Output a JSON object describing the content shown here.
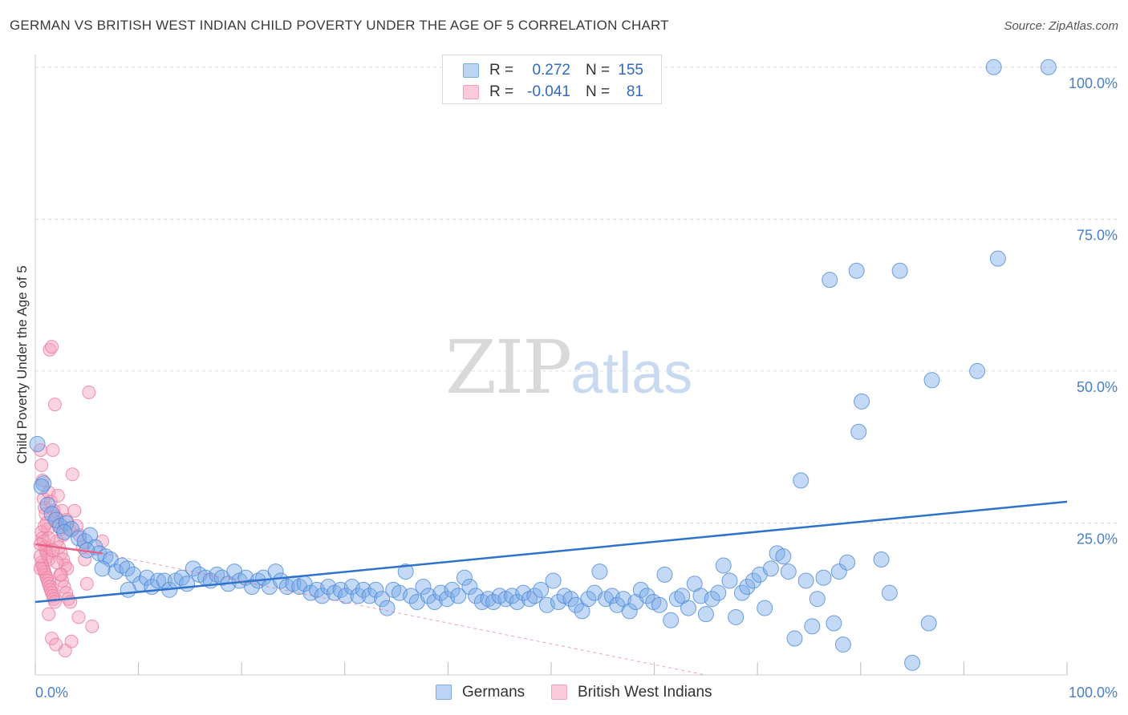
{
  "title": "GERMAN VS BRITISH WEST INDIAN CHILD POVERTY UNDER THE AGE OF 5 CORRELATION CHART",
  "source": "Source: ZipAtlas.com",
  "watermark": {
    "zip": "ZIP",
    "atlas": "atlas"
  },
  "legend": {
    "rows": [
      {
        "r_label": "R =",
        "r_value": "0.272",
        "n_label": "N =",
        "n_value": "155",
        "color": "#7aaae8"
      },
      {
        "r_label": "R =",
        "r_value": "-0.041",
        "n_label": "N =",
        "n_value": "81",
        "color": "#f4a0bb"
      }
    ]
  },
  "bottom_legend": [
    {
      "name": "Germans",
      "color": "#7aaae8"
    },
    {
      "name": "British West Indians",
      "color": "#f4a0bb"
    }
  ],
  "chart_data": {
    "type": "scatter",
    "title": "GERMAN VS BRITISH WEST INDIAN CHILD POVERTY UNDER THE AGE OF 5 CORRELATION CHART",
    "xlabel": "",
    "ylabel": "Child Poverty Under the Age of 5",
    "xlim": [
      0,
      100
    ],
    "ylim": [
      0,
      100
    ],
    "x_ticks": [
      "0.0%",
      "100.0%"
    ],
    "y_ticks": [
      {
        "value": 25,
        "label": "25.0%"
      },
      {
        "value": 50,
        "label": "50.0%"
      },
      {
        "value": 75,
        "label": "75.0%"
      },
      {
        "value": 100,
        "label": "100.0%"
      }
    ],
    "grid": true,
    "series": [
      {
        "name": "Germans",
        "color": "#7aaae8",
        "stroke": "#4d8ad8",
        "trend": {
          "x": [
            0,
            100
          ],
          "y": [
            12.0,
            28.5
          ],
          "color": "#2f72cc",
          "style": "solid"
        },
        "points": [
          [
            0.2,
            38.0
          ],
          [
            0.8,
            31.5
          ],
          [
            1.2,
            28.0
          ],
          [
            1.6,
            26.5
          ],
          [
            2.0,
            25.5
          ],
          [
            2.4,
            24.5
          ],
          [
            3.0,
            25.0
          ],
          [
            3.5,
            24.0
          ],
          [
            4.2,
            22.5
          ],
          [
            4.8,
            22.0
          ],
          [
            5.3,
            23.0
          ],
          [
            5.8,
            21.0
          ],
          [
            6.2,
            20.0
          ],
          [
            6.8,
            19.5
          ],
          [
            7.3,
            19.0
          ],
          [
            7.8,
            17.0
          ],
          [
            8.4,
            18.0
          ],
          [
            8.9,
            17.5
          ],
          [
            9.5,
            16.5
          ],
          [
            10.2,
            15.0
          ],
          [
            10.8,
            16.0
          ],
          [
            11.3,
            14.5
          ],
          [
            11.9,
            15.5
          ],
          [
            12.5,
            15.5
          ],
          [
            13.0,
            14.0
          ],
          [
            13.6,
            15.5
          ],
          [
            14.2,
            16.0
          ],
          [
            14.7,
            15.0
          ],
          [
            15.3,
            17.5
          ],
          [
            15.9,
            16.5
          ],
          [
            16.5,
            16.0
          ],
          [
            17.0,
            15.5
          ],
          [
            17.6,
            16.5
          ],
          [
            18.1,
            16.0
          ],
          [
            18.7,
            15.0
          ],
          [
            19.3,
            17.0
          ],
          [
            19.8,
            15.5
          ],
          [
            20.4,
            16.0
          ],
          [
            21.0,
            14.5
          ],
          [
            21.6,
            15.5
          ],
          [
            22.1,
            16.0
          ],
          [
            22.7,
            14.5
          ],
          [
            23.3,
            17.0
          ],
          [
            23.8,
            15.5
          ],
          [
            24.4,
            14.5
          ],
          [
            25.0,
            15.0
          ],
          [
            25.6,
            14.5
          ],
          [
            26.1,
            15.0
          ],
          [
            26.7,
            13.5
          ],
          [
            27.3,
            14.0
          ],
          [
            27.8,
            13.0
          ],
          [
            28.4,
            14.5
          ],
          [
            29.0,
            13.5
          ],
          [
            29.6,
            14.0
          ],
          [
            30.1,
            13.0
          ],
          [
            30.7,
            14.5
          ],
          [
            31.3,
            13.0
          ],
          [
            31.8,
            14.0
          ],
          [
            32.4,
            13.0
          ],
          [
            33.0,
            14.0
          ],
          [
            33.6,
            12.5
          ],
          [
            34.1,
            11.0
          ],
          [
            34.7,
            14.0
          ],
          [
            35.3,
            13.5
          ],
          [
            35.9,
            17.0
          ],
          [
            36.4,
            13.0
          ],
          [
            37.0,
            12.0
          ],
          [
            37.6,
            14.5
          ],
          [
            38.1,
            13.0
          ],
          [
            38.7,
            12.0
          ],
          [
            39.3,
            13.5
          ],
          [
            39.9,
            12.5
          ],
          [
            40.4,
            14.0
          ],
          [
            41.0,
            13.0
          ],
          [
            41.6,
            16.0
          ],
          [
            42.1,
            14.5
          ],
          [
            42.7,
            13.0
          ],
          [
            43.3,
            12.0
          ],
          [
            43.9,
            12.5
          ],
          [
            44.4,
            12.0
          ],
          [
            45.0,
            13.0
          ],
          [
            45.6,
            12.5
          ],
          [
            46.2,
            13.0
          ],
          [
            46.7,
            12.0
          ],
          [
            47.3,
            13.5
          ],
          [
            47.9,
            12.5
          ],
          [
            48.4,
            13.0
          ],
          [
            49.0,
            14.0
          ],
          [
            49.6,
            11.5
          ],
          [
            50.2,
            15.5
          ],
          [
            50.7,
            12.0
          ],
          [
            51.3,
            13.0
          ],
          [
            51.9,
            12.5
          ],
          [
            52.4,
            11.5
          ],
          [
            53.0,
            10.5
          ],
          [
            53.6,
            12.5
          ],
          [
            54.2,
            13.5
          ],
          [
            54.7,
            17.0
          ],
          [
            55.3,
            12.5
          ],
          [
            55.9,
            13.0
          ],
          [
            56.4,
            11.5
          ],
          [
            57.0,
            12.5
          ],
          [
            57.6,
            10.5
          ],
          [
            58.2,
            12.0
          ],
          [
            58.7,
            14.0
          ],
          [
            59.3,
            13.0
          ],
          [
            59.9,
            12.0
          ],
          [
            60.5,
            11.5
          ],
          [
            61.0,
            16.5
          ],
          [
            61.6,
            9.0
          ],
          [
            62.2,
            12.5
          ],
          [
            62.7,
            13.0
          ],
          [
            63.3,
            11.0
          ],
          [
            63.9,
            15.0
          ],
          [
            64.5,
            13.0
          ],
          [
            65.0,
            10.0
          ],
          [
            65.6,
            12.5
          ],
          [
            66.2,
            13.5
          ],
          [
            66.7,
            18.0
          ],
          [
            67.3,
            15.5
          ],
          [
            67.9,
            9.5
          ],
          [
            68.5,
            13.5
          ],
          [
            69.0,
            14.5
          ],
          [
            69.6,
            15.5
          ],
          [
            70.2,
            16.5
          ],
          [
            70.7,
            11.0
          ],
          [
            71.3,
            17.5
          ],
          [
            71.9,
            20.0
          ],
          [
            72.5,
            19.5
          ],
          [
            73.0,
            17.0
          ],
          [
            73.6,
            6.0
          ],
          [
            74.2,
            32.0
          ],
          [
            74.7,
            15.5
          ],
          [
            75.3,
            8.0
          ],
          [
            75.8,
            12.5
          ],
          [
            76.4,
            16.0
          ],
          [
            77.0,
            65.0
          ],
          [
            77.4,
            8.5
          ],
          [
            77.9,
            17.0
          ],
          [
            78.3,
            5.0
          ],
          [
            78.7,
            18.5
          ],
          [
            79.6,
            66.5
          ],
          [
            79.8,
            40.0
          ],
          [
            80.1,
            45.0
          ],
          [
            82.0,
            19.0
          ],
          [
            82.8,
            13.5
          ],
          [
            83.8,
            66.5
          ],
          [
            85.0,
            2.0
          ],
          [
            86.6,
            8.5
          ],
          [
            86.9,
            48.5
          ],
          [
            91.3,
            50.0
          ],
          [
            92.9,
            100.0
          ],
          [
            93.3,
            68.5
          ],
          [
            98.2,
            100.0
          ],
          [
            0.6,
            31.0
          ],
          [
            2.8,
            23.5
          ],
          [
            5.0,
            20.5
          ],
          [
            6.5,
            17.5
          ],
          [
            9.0,
            14.0
          ]
        ]
      },
      {
        "name": "British West Indians",
        "color": "#f4a0bb",
        "stroke": "#ec7a9e",
        "trend": {
          "x": [
            0,
            6.5
          ],
          "y": [
            21.5,
            20.0
          ],
          "color": "#e8608a",
          "style": "solid"
        },
        "trend_ext": {
          "x": [
            6.5,
            100
          ],
          "y": [
            20.0,
            -12.0
          ],
          "color": "#e8608a",
          "style": "dashed"
        },
        "points": [
          [
            0.5,
            37.0
          ],
          [
            0.6,
            34.5
          ],
          [
            0.7,
            32.0
          ],
          [
            0.8,
            29.0
          ],
          [
            0.9,
            27.5
          ],
          [
            1.0,
            26.5
          ],
          [
            1.1,
            25.0
          ],
          [
            1.2,
            24.0
          ],
          [
            0.6,
            23.5
          ],
          [
            0.7,
            22.5
          ],
          [
            0.8,
            22.0
          ],
          [
            0.9,
            21.0
          ],
          [
            1.0,
            20.5
          ],
          [
            1.1,
            20.0
          ],
          [
            1.2,
            19.5
          ],
          [
            1.3,
            19.0
          ],
          [
            0.6,
            18.5
          ],
          [
            0.7,
            18.0
          ],
          [
            0.8,
            17.5
          ],
          [
            0.9,
            17.0
          ],
          [
            1.0,
            16.5
          ],
          [
            1.1,
            16.0
          ],
          [
            1.2,
            15.5
          ],
          [
            1.3,
            15.0
          ],
          [
            1.4,
            14.5
          ],
          [
            1.5,
            14.0
          ],
          [
            1.6,
            13.5
          ],
          [
            1.7,
            13.0
          ],
          [
            1.8,
            12.5
          ],
          [
            1.9,
            12.0
          ],
          [
            1.4,
            53.5
          ],
          [
            1.6,
            54.0
          ],
          [
            1.9,
            44.5
          ],
          [
            1.7,
            37.0
          ],
          [
            1.3,
            30.0
          ],
          [
            1.5,
            28.5
          ],
          [
            1.8,
            27.0
          ],
          [
            2.0,
            26.0
          ],
          [
            2.2,
            25.0
          ],
          [
            2.5,
            24.0
          ],
          [
            2.7,
            23.0
          ],
          [
            2.1,
            22.0
          ],
          [
            2.3,
            21.0
          ],
          [
            2.5,
            20.0
          ],
          [
            2.7,
            19.0
          ],
          [
            2.9,
            18.0
          ],
          [
            3.1,
            17.5
          ],
          [
            2.4,
            16.5
          ],
          [
            2.6,
            15.5
          ],
          [
            2.8,
            14.5
          ],
          [
            3.0,
            13.5
          ],
          [
            3.2,
            12.5
          ],
          [
            3.4,
            12.0
          ],
          [
            2.2,
            29.5
          ],
          [
            2.6,
            27.0
          ],
          [
            3.0,
            25.5
          ],
          [
            3.3,
            24.0
          ],
          [
            5.2,
            46.5
          ],
          [
            3.6,
            33.0
          ],
          [
            3.8,
            27.0
          ],
          [
            4.0,
            24.5
          ],
          [
            4.3,
            23.0
          ],
          [
            4.6,
            21.0
          ],
          [
            4.8,
            19.0
          ],
          [
            5.0,
            15.0
          ],
          [
            5.5,
            8.0
          ],
          [
            4.2,
            9.5
          ],
          [
            3.5,
            5.5
          ],
          [
            2.9,
            4.0
          ],
          [
            1.3,
            10.0
          ],
          [
            1.6,
            6.0
          ],
          [
            2.0,
            5.0
          ],
          [
            0.5,
            21.5
          ],
          [
            0.5,
            19.5
          ],
          [
            0.5,
            17.5
          ],
          [
            0.9,
            24.5
          ],
          [
            1.3,
            22.5
          ],
          [
            1.7,
            20.5
          ],
          [
            2.1,
            18.5
          ],
          [
            2.5,
            16.5
          ],
          [
            6.5,
            22.0
          ]
        ]
      }
    ]
  }
}
